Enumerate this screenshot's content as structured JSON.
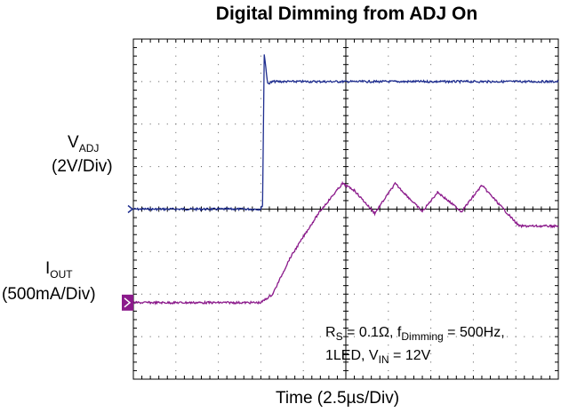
{
  "chart_data": {
    "type": "line",
    "title": "Digital Dimming from ADJ On",
    "xlabel": "Time (2.5µs/Div)",
    "x_unit_per_div": 2.5,
    "divisions": {
      "x": 10,
      "y": 8
    },
    "grid": true,
    "xlim": [
      0,
      25
    ],
    "series": [
      {
        "name": "V_ADJ",
        "label_main": "V",
        "label_sub": "ADJ",
        "label_scale": "(2V/Div)",
        "color": "#1f2e8f",
        "unit": "V",
        "scale_per_div": 2,
        "ref_div": 4,
        "x": [
          0,
          7.5,
          7.6,
          7.7,
          7.9,
          8.2,
          10,
          15,
          20,
          25
        ],
        "y": [
          0,
          0,
          0.2,
          7.3,
          5.9,
          6.0,
          6.0,
          6.0,
          6.0,
          6.0
        ]
      },
      {
        "name": "I_OUT",
        "label_main": "I",
        "label_sub": "OUT",
        "label_scale": "(500mA/Div)",
        "color": "#8b1a8b",
        "unit": "mA",
        "scale_per_div": 500,
        "ref_div": 1.8,
        "x": [
          0,
          7.5,
          8.2,
          9.2,
          10.4,
          11.0,
          12.3,
          13.0,
          14.2,
          15.4,
          17.0,
          17.9,
          19.3,
          20.5,
          22.0,
          22.7
        ],
        "y": [
          0,
          0,
          100,
          520,
          900,
          1080,
          1400,
          1320,
          1050,
          1400,
          1070,
          1300,
          1070,
          1380,
          1050,
          900
        ]
      }
    ],
    "annotation": {
      "line1_a": "R",
      "line1_a_sub": "S",
      "line1_b": " = 0.1Ω, f",
      "line1_b_sub": "Dimming",
      "line1_c": " = 500Hz,",
      "line2_a": "1LED, V",
      "line2_a_sub": "IN",
      "line2_b": " = 12V"
    }
  }
}
